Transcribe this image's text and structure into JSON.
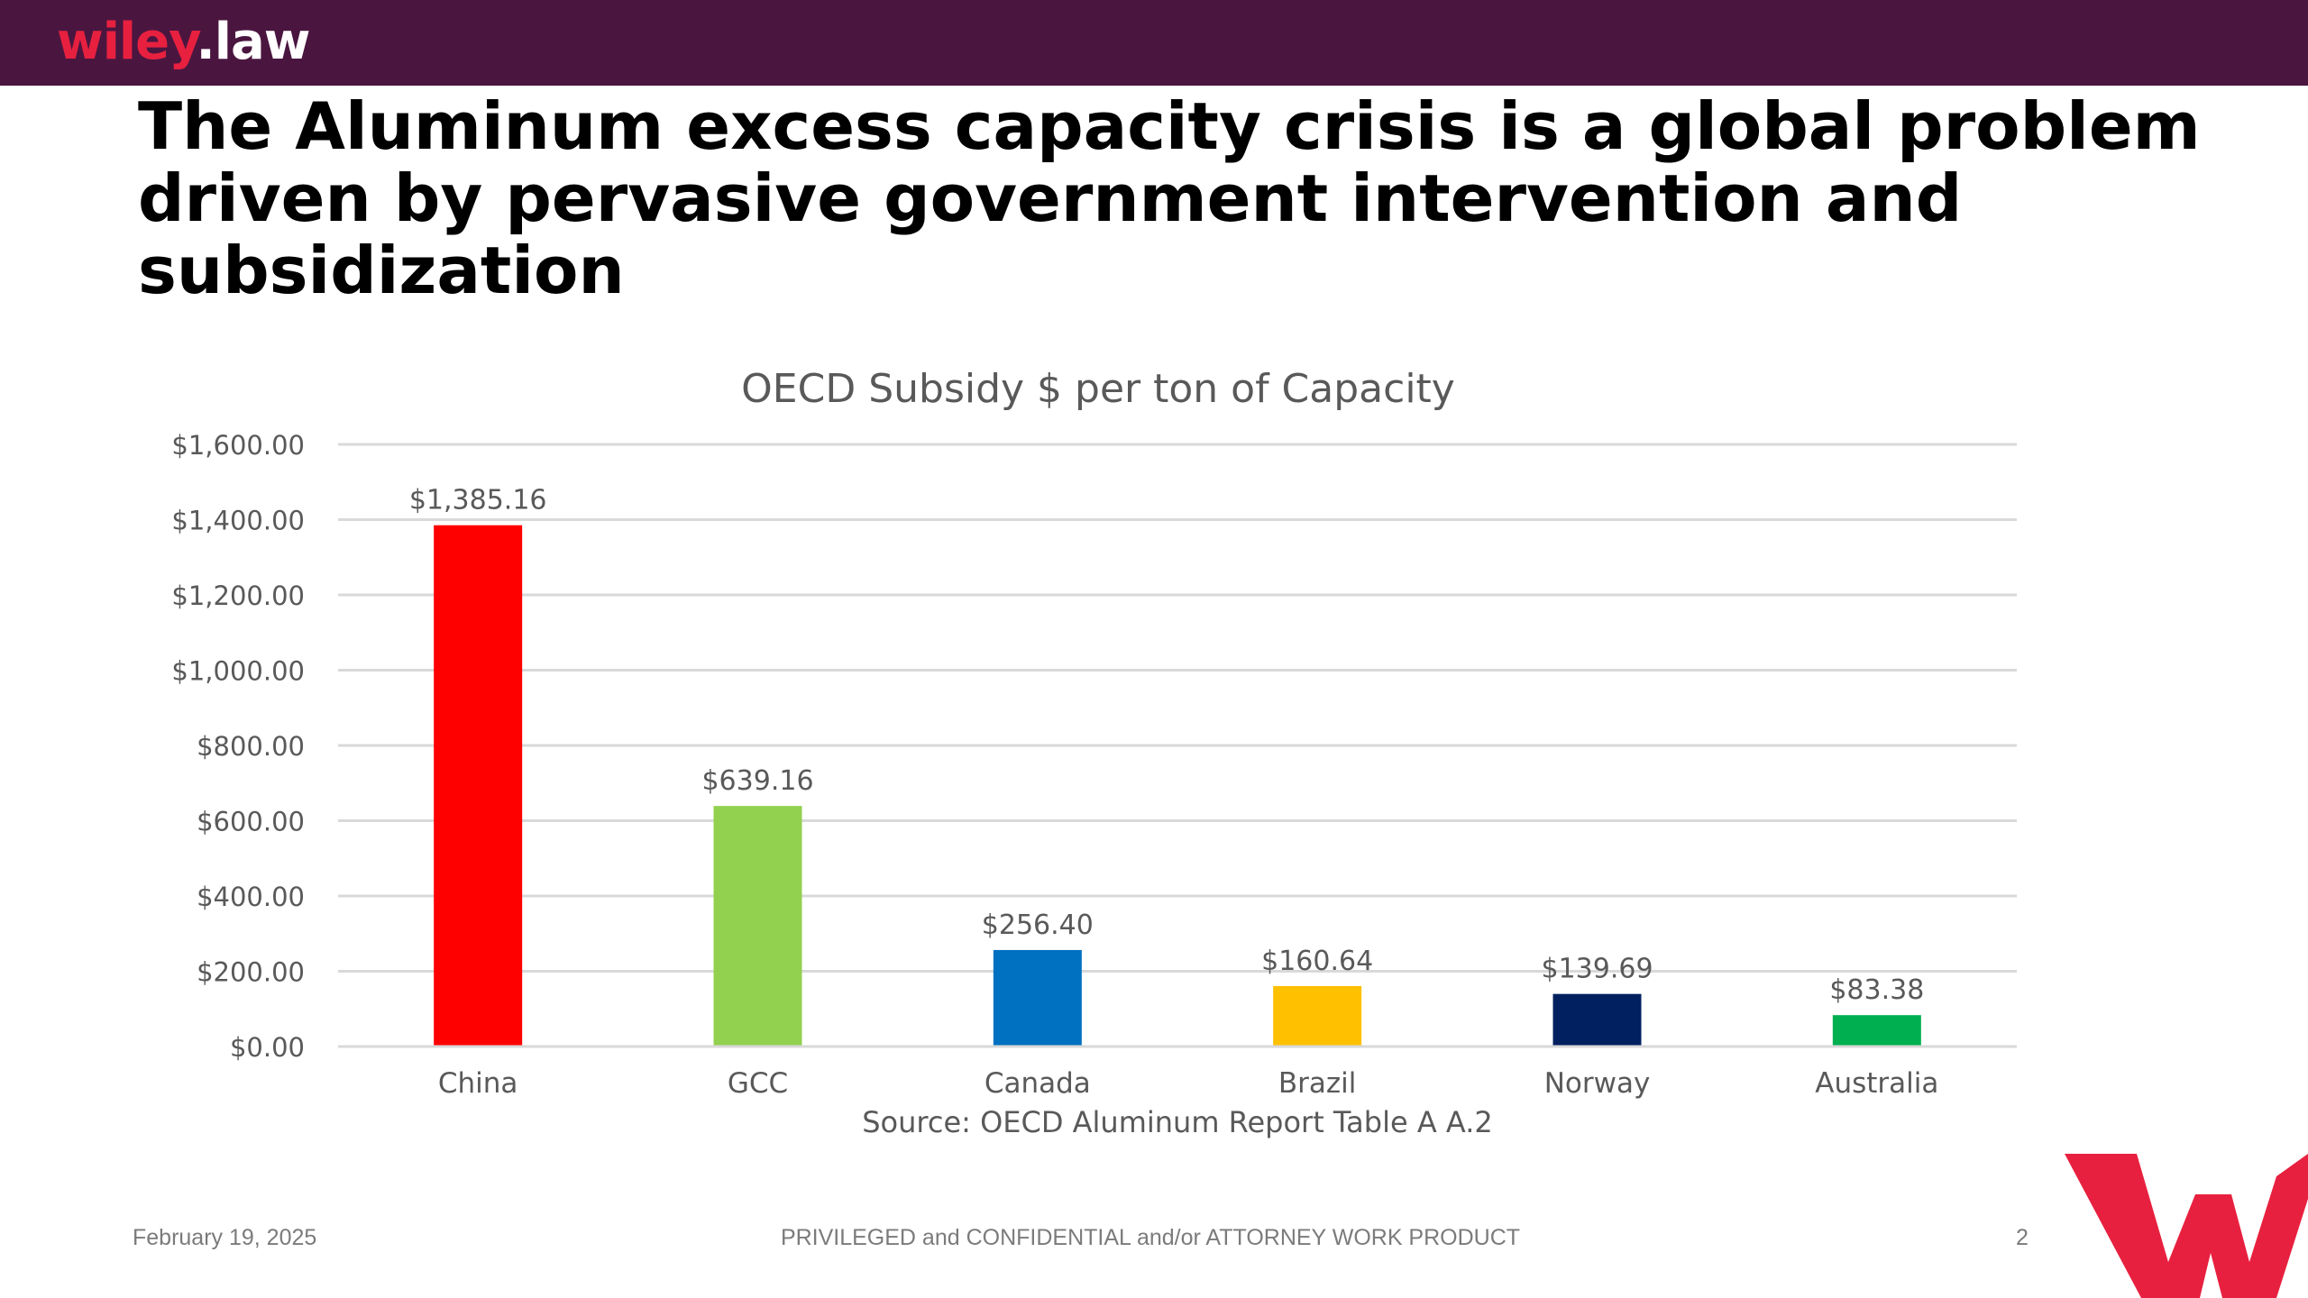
{
  "header": {
    "logo_primary": "wiley",
    "logo_secondary": ".law",
    "bar_color": "#4a1640",
    "accent_color": "#e8203f"
  },
  "slide": {
    "title": "The Aluminum excess capacity crisis is a global problem driven by pervasive government intervention and subsidization"
  },
  "chart_data": {
    "type": "bar",
    "title": "OECD Subsidy $ per ton of Capacity",
    "categories": [
      "China",
      "GCC",
      "Canada",
      "Brazil",
      "Norway",
      "Australia"
    ],
    "values": [
      1385.16,
      639.16,
      256.4,
      160.64,
      139.69,
      83.38
    ],
    "data_labels": [
      "$1,385.16",
      "$639.16",
      "$256.40",
      "$160.64",
      "$139.69",
      "$83.38"
    ],
    "colors": [
      "#ff0000",
      "#92d050",
      "#0070c0",
      "#ffc000",
      "#002060",
      "#00b050"
    ],
    "ylim": [
      0,
      1600
    ],
    "yticks": [
      0,
      200,
      400,
      600,
      800,
      1000,
      1200,
      1400,
      1600
    ],
    "ytick_labels": [
      "$0.00",
      "$200.00",
      "$400.00",
      "$600.00",
      "$800.00",
      "$1,000.00",
      "$1,200.00",
      "$1,400.00",
      "$1,600.00"
    ],
    "xlabel": "Source: OECD Aluminum Report Table A A.2",
    "ylabel": "",
    "grid": true,
    "legend": "none"
  },
  "footer": {
    "date": "February 19, 2025",
    "confidential": "PRIVILEGED and CONFIDENTIAL and/or ATTORNEY WORK PRODUCT",
    "page": "2"
  },
  "brand_mark_icon": "wiley-w-icon"
}
